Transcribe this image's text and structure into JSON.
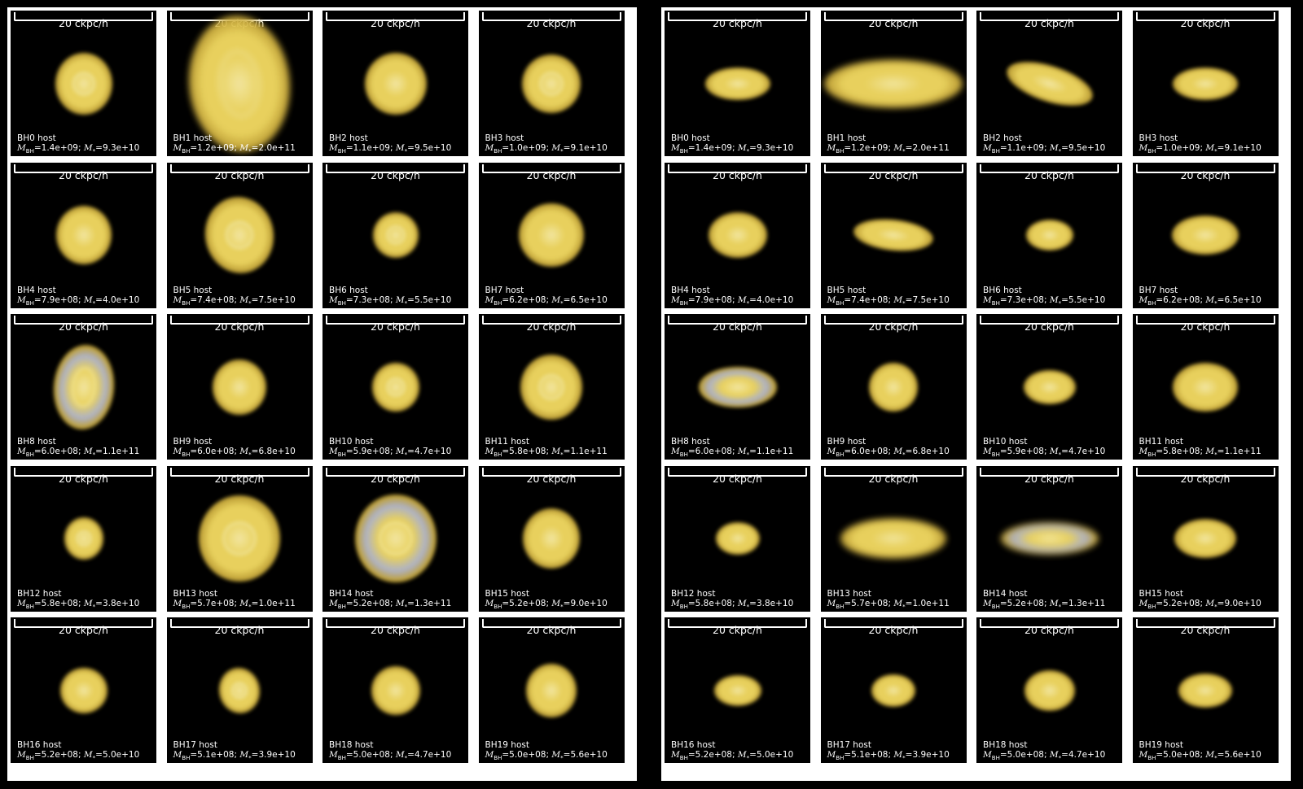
{
  "scale_label": "20 ckpc/h",
  "colors": {
    "background": "#000000",
    "frame": "#ffffff",
    "galaxy_core": "#fff2a8",
    "galaxy_body": "#f5dc62",
    "galaxy_halo": "#c9a93a",
    "blue_tint": "#b8bcd0"
  },
  "views": [
    {
      "name": "face-on",
      "panels": [
        {
          "label": "BH0 host",
          "mbh": "1.4e+09",
          "mstar": "9.3e+10",
          "w": 70,
          "h": 76,
          "rot": 0,
          "ring": true
        },
        {
          "label": "BH1 host",
          "mbh": "1.2e+09",
          "mstar": "2.0e+11",
          "w": 124,
          "h": 168,
          "rot": -5,
          "ring": true
        },
        {
          "label": "BH2 host",
          "mbh": "1.1e+09",
          "mstar": "9.5e+10",
          "w": 76,
          "h": 76,
          "rot": 0,
          "ring": false
        },
        {
          "label": "BH3 host",
          "mbh": "1.0e+09",
          "mstar": "9.1e+10",
          "w": 72,
          "h": 72,
          "rot": 0,
          "ring": true
        },
        {
          "label": "BH4 host",
          "mbh": "7.9e+08",
          "mstar": "4.0e+10",
          "w": 68,
          "h": 72,
          "rot": 0,
          "ring": false
        },
        {
          "label": "BH5 host",
          "mbh": "7.4e+08",
          "mstar": "7.5e+10",
          "w": 84,
          "h": 94,
          "rot": -10,
          "ring": true
        },
        {
          "label": "BH6 host",
          "mbh": "7.3e+08",
          "mstar": "5.5e+10",
          "w": 56,
          "h": 56,
          "rot": 0,
          "ring": true
        },
        {
          "label": "BH7 host",
          "mbh": "6.2e+08",
          "mstar": "6.5e+10",
          "w": 80,
          "h": 78,
          "rot": 0,
          "ring": false
        },
        {
          "label": "BH8 host",
          "mbh": "6.0e+08",
          "mstar": "1.1e+11",
          "w": 74,
          "h": 104,
          "rot": 5,
          "ring": true,
          "blue": true
        },
        {
          "label": "BH9 host",
          "mbh": "6.0e+08",
          "mstar": "6.8e+10",
          "w": 66,
          "h": 68,
          "rot": 0,
          "ring": false
        },
        {
          "label": "BH10 host",
          "mbh": "5.9e+08",
          "mstar": "4.7e+10",
          "w": 58,
          "h": 60,
          "rot": 0,
          "ring": true
        },
        {
          "label": "BH11 host",
          "mbh": "5.8e+08",
          "mstar": "1.1e+11",
          "w": 76,
          "h": 80,
          "rot": 0,
          "ring": true
        },
        {
          "label": "BH12 host",
          "mbh": "5.8e+08",
          "mstar": "3.8e+10",
          "w": 48,
          "h": 52,
          "rot": 0,
          "ring": true
        },
        {
          "label": "BH13 host",
          "mbh": "5.7e+08",
          "mstar": "1.0e+11",
          "w": 100,
          "h": 106,
          "rot": 0,
          "ring": true
        },
        {
          "label": "BH14 host",
          "mbh": "5.2e+08",
          "mstar": "1.3e+11",
          "w": 100,
          "h": 108,
          "rot": 0,
          "ring": true,
          "blue": true
        },
        {
          "label": "BH15 host",
          "mbh": "5.2e+08",
          "mstar": "9.0e+10",
          "w": 70,
          "h": 74,
          "rot": 0,
          "ring": false
        },
        {
          "label": "BH16 host",
          "mbh": "5.2e+08",
          "mstar": "5.0e+10",
          "w": 58,
          "h": 56,
          "rot": 0,
          "ring": false
        },
        {
          "label": "BH17 host",
          "mbh": "5.1e+08",
          "mstar": "3.9e+10",
          "w": 50,
          "h": 56,
          "rot": -10,
          "ring": true
        },
        {
          "label": "BH18 host",
          "mbh": "5.0e+08",
          "mstar": "4.7e+10",
          "w": 60,
          "h": 60,
          "rot": 0,
          "ring": false
        },
        {
          "label": "BH19 host",
          "mbh": "5.0e+08",
          "mstar": "5.6e+10",
          "w": 62,
          "h": 66,
          "rot": 0,
          "ring": false
        }
      ]
    },
    {
      "name": "edge-on",
      "panels": [
        {
          "label": "BH0 host",
          "mbh": "1.4e+09",
          "mstar": "9.3e+10",
          "w": 80,
          "h": 40,
          "rot": 0
        },
        {
          "label": "BH1 host",
          "mbh": "1.2e+09",
          "mstar": "2.0e+11",
          "w": 170,
          "h": 60,
          "rot": 0
        },
        {
          "label": "BH2 host",
          "mbh": "1.1e+09",
          "mstar": "9.5e+10",
          "w": 110,
          "h": 44,
          "rot": 18
        },
        {
          "label": "BH3 host",
          "mbh": "1.0e+09",
          "mstar": "9.1e+10",
          "w": 80,
          "h": 40,
          "rot": 0
        },
        {
          "label": "BH4 host",
          "mbh": "7.9e+08",
          "mstar": "4.0e+10",
          "w": 72,
          "h": 56,
          "rot": 0
        },
        {
          "label": "BH5 host",
          "mbh": "7.4e+08",
          "mstar": "7.5e+10",
          "w": 98,
          "h": 38,
          "rot": 6
        },
        {
          "label": "BH6 host",
          "mbh": "7.3e+08",
          "mstar": "5.5e+10",
          "w": 58,
          "h": 38,
          "rot": 0
        },
        {
          "label": "BH7 host",
          "mbh": "6.2e+08",
          "mstar": "6.5e+10",
          "w": 82,
          "h": 48,
          "rot": 0
        },
        {
          "label": "BH8 host",
          "mbh": "6.0e+08",
          "mstar": "1.1e+11",
          "w": 96,
          "h": 50,
          "rot": 0,
          "blue": true
        },
        {
          "label": "BH9 host",
          "mbh": "6.0e+08",
          "mstar": "6.8e+10",
          "w": 60,
          "h": 60,
          "rot": 45
        },
        {
          "label": "BH10 host",
          "mbh": "5.9e+08",
          "mstar": "4.7e+10",
          "w": 64,
          "h": 42,
          "rot": 0
        },
        {
          "label": "BH11 host",
          "mbh": "5.8e+08",
          "mstar": "1.1e+11",
          "w": 80,
          "h": 60,
          "rot": 0
        },
        {
          "label": "BH12 host",
          "mbh": "5.8e+08",
          "mstar": "3.8e+10",
          "w": 54,
          "h": 40,
          "rot": 0
        },
        {
          "label": "BH13 host",
          "mbh": "5.7e+08",
          "mstar": "1.0e+11",
          "w": 130,
          "h": 50,
          "rot": 0
        },
        {
          "label": "BH14 host",
          "mbh": "5.2e+08",
          "mstar": "1.3e+11",
          "w": 120,
          "h": 40,
          "rot": 0,
          "blue": true
        },
        {
          "label": "BH15 host",
          "mbh": "5.2e+08",
          "mstar": "9.0e+10",
          "w": 76,
          "h": 48,
          "rot": 0
        },
        {
          "label": "BH16 host",
          "mbh": "5.2e+08",
          "mstar": "5.0e+10",
          "w": 58,
          "h": 38,
          "rot": 0
        },
        {
          "label": "BH17 host",
          "mbh": "5.1e+08",
          "mstar": "3.9e+10",
          "w": 54,
          "h": 40,
          "rot": 0
        },
        {
          "label": "BH18 host",
          "mbh": "5.0e+08",
          "mstar": "4.7e+10",
          "w": 62,
          "h": 50,
          "rot": 0
        },
        {
          "label": "BH19 host",
          "mbh": "5.0e+08",
          "mstar": "5.6e+10",
          "w": 66,
          "h": 42,
          "rot": 0
        }
      ]
    }
  ]
}
